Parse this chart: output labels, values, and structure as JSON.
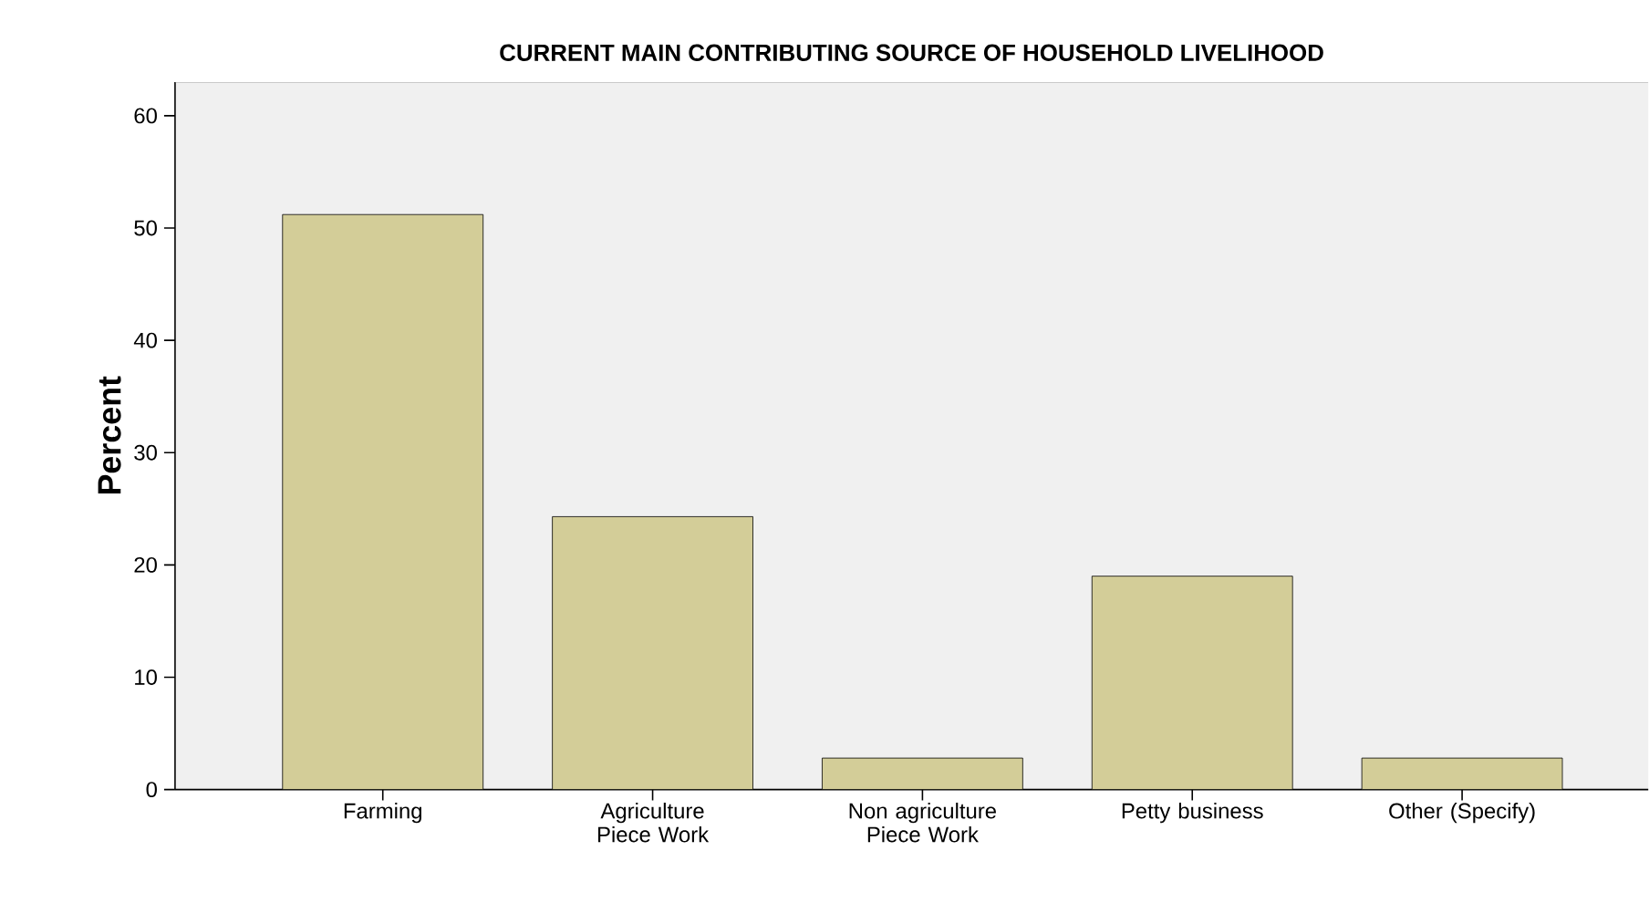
{
  "chart_data": {
    "type": "bar",
    "title": "CURRENT MAIN CONTRIBUTING SOURCE OF HOUSEHOLD LIVELIHOOD",
    "ylabel": "Percent",
    "categories": [
      "Farming",
      "Agriculture Piece Work",
      "Non agriculture Piece Work",
      "Petty business",
      "Other (Specify)"
    ],
    "values": [
      51.2,
      24.3,
      2.8,
      19.0,
      2.8
    ],
    "color": "#d3cd98",
    "ylim": [
      0,
      63
    ],
    "yticks": [
      0,
      10,
      20,
      30,
      40,
      50,
      60
    ],
    "grid": false
  }
}
